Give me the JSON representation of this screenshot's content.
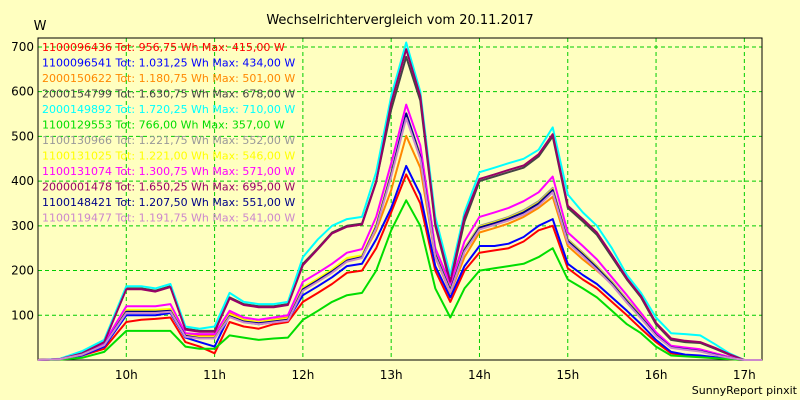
{
  "chart_data": {
    "type": "line",
    "title": "Wechselrichtervergleich vom 20.11.2017",
    "ylabel": "W",
    "xlabel": "",
    "footer": "SunnyReport pinxit",
    "xlim": [
      9.0,
      17.2
    ],
    "ylim": [
      0,
      720
    ],
    "yticks": [
      100,
      200,
      300,
      400,
      500,
      600,
      700
    ],
    "xticks": [
      10,
      11,
      12,
      13,
      14,
      15,
      16,
      17
    ],
    "xtick_labels": [
      "10h",
      "11h",
      "12h",
      "13h",
      "14h",
      "15h",
      "16h",
      "17h"
    ],
    "grid": true,
    "legend_position": "top-left",
    "x": [
      9.0,
      9.25,
      9.5,
      9.75,
      10.0,
      10.17,
      10.33,
      10.5,
      10.67,
      10.83,
      11.0,
      11.17,
      11.33,
      11.5,
      11.67,
      11.83,
      12.0,
      12.17,
      12.33,
      12.5,
      12.67,
      12.83,
      13.0,
      13.17,
      13.33,
      13.5,
      13.67,
      13.83,
      14.0,
      14.17,
      14.33,
      14.5,
      14.67,
      14.83,
      15.0,
      15.17,
      15.33,
      15.5,
      15.67,
      15.83,
      16.0,
      16.17,
      16.33,
      16.5,
      16.67,
      16.83,
      17.0,
      17.2
    ],
    "series": [
      {
        "name": "1100096436 Tot: 956,75 Wh Max: 415,00 W",
        "color": "#ff0000",
        "values": [
          0,
          2,
          10,
          25,
          85,
          90,
          92,
          95,
          40,
          30,
          15,
          85,
          75,
          70,
          80,
          85,
          130,
          150,
          170,
          195,
          200,
          250,
          330,
          415,
          350,
          200,
          130,
          200,
          240,
          245,
          250,
          265,
          290,
          300,
          205,
          180,
          160,
          130,
          100,
          70,
          40,
          15,
          10,
          8,
          5,
          2,
          0,
          0
        ]
      },
      {
        "name": "1100096541 Tot: 1.031,25 Wh Max: 434,00 W",
        "color": "#0000ff",
        "values": [
          0,
          2,
          10,
          30,
          100,
          100,
          100,
          105,
          50,
          40,
          30,
          100,
          85,
          80,
          85,
          90,
          145,
          165,
          185,
          210,
          215,
          270,
          340,
          434,
          370,
          210,
          140,
          210,
          255,
          255,
          260,
          275,
          300,
          315,
          215,
          190,
          170,
          140,
          110,
          80,
          45,
          18,
          12,
          10,
          6,
          3,
          0,
          0
        ]
      },
      {
        "name": "2000150622 Tot: 1.180,75 Wh Max: 501,00 W",
        "color": "#ff8800",
        "values": [
          0,
          2,
          15,
          35,
          110,
          110,
          110,
          110,
          60,
          55,
          55,
          105,
          90,
          85,
          90,
          95,
          160,
          180,
          200,
          225,
          230,
          290,
          380,
          501,
          430,
          230,
          150,
          230,
          285,
          295,
          305,
          320,
          340,
          365,
          255,
          225,
          200,
          170,
          130,
          95,
          55,
          28,
          25,
          20,
          12,
          5,
          0,
          0
        ]
      },
      {
        "name": "2000154799 Tot: 1.630,75 Wh Max: 678,00 W",
        "color": "#444444",
        "values": [
          0,
          2,
          15,
          40,
          160,
          160,
          155,
          165,
          70,
          65,
          65,
          140,
          125,
          120,
          120,
          125,
          215,
          250,
          285,
          300,
          305,
          400,
          560,
          678,
          580,
          300,
          170,
          310,
          400,
          410,
          420,
          430,
          455,
          500,
          340,
          310,
          280,
          230,
          180,
          140,
          80,
          45,
          40,
          38,
          25,
          12,
          0,
          0
        ]
      },
      {
        "name": "2000149892 Tot: 1.720,25 Wh Max: 710,00 W",
        "color": "#00ffff",
        "values": [
          0,
          3,
          20,
          45,
          165,
          165,
          160,
          170,
          75,
          70,
          75,
          150,
          130,
          125,
          125,
          130,
          230,
          270,
          300,
          315,
          320,
          420,
          590,
          710,
          600,
          320,
          190,
          330,
          420,
          430,
          440,
          450,
          470,
          520,
          370,
          330,
          300,
          250,
          190,
          150,
          95,
          60,
          58,
          55,
          35,
          15,
          0,
          0
        ]
      },
      {
        "name": "1100129553 Tot: 766,00 Wh Max: 357,00 W",
        "color": "#00dd00",
        "values": [
          0,
          1,
          5,
          18,
          65,
          65,
          65,
          65,
          30,
          25,
          25,
          55,
          50,
          45,
          48,
          50,
          90,
          110,
          130,
          145,
          150,
          200,
          290,
          357,
          300,
          160,
          95,
          160,
          200,
          205,
          210,
          215,
          230,
          250,
          180,
          160,
          140,
          110,
          80,
          60,
          30,
          10,
          8,
          6,
          4,
          2,
          0,
          0
        ]
      },
      {
        "name": "1100130966 Tot: 1.221,75 Wh Max: 552,00 W",
        "color": "#999999",
        "values": [
          0,
          2,
          12,
          35,
          110,
          110,
          110,
          112,
          55,
          50,
          50,
          100,
          88,
          84,
          88,
          92,
          160,
          180,
          200,
          225,
          232,
          300,
          420,
          552,
          460,
          240,
          160,
          250,
          300,
          310,
          320,
          335,
          355,
          385,
          270,
          240,
          210,
          175,
          135,
          100,
          58,
          30,
          26,
          22,
          14,
          6,
          0,
          0
        ]
      },
      {
        "name": "1100131025 Tot: 1.221,00 Wh Max: 546,00 W",
        "color": "#ffff00",
        "values": [
          0,
          2,
          12,
          35,
          112,
          112,
          112,
          114,
          56,
          51,
          51,
          102,
          89,
          85,
          89,
          93,
          162,
          182,
          202,
          228,
          234,
          302,
          418,
          546,
          458,
          238,
          158,
          248,
          298,
          308,
          318,
          332,
          352,
          382,
          268,
          238,
          208,
          173,
          133,
          98,
          57,
          29,
          25,
          21,
          13,
          6,
          0,
          0
        ]
      },
      {
        "name": "1100131074 Tot: 1.300,75 Wh Max: 571,00 W",
        "color": "#ff00ff",
        "values": [
          0,
          2,
          14,
          38,
          120,
          120,
          120,
          125,
          60,
          58,
          58,
          110,
          95,
          90,
          95,
          100,
          175,
          195,
          215,
          240,
          248,
          320,
          440,
          571,
          480,
          250,
          170,
          265,
          320,
          330,
          340,
          355,
          375,
          410,
          285,
          255,
          225,
          185,
          145,
          105,
          62,
          32,
          28,
          24,
          15,
          7,
          0,
          0
        ]
      },
      {
        "name": "2000001478 Tot: 1.650,25 Wh Max: 695,00 W",
        "color": "#990066",
        "values": [
          0,
          2,
          15,
          40,
          158,
          158,
          153,
          163,
          68,
          63,
          63,
          138,
          123,
          118,
          118,
          123,
          212,
          248,
          283,
          298,
          303,
          398,
          575,
          695,
          590,
          305,
          175,
          320,
          405,
          415,
          425,
          435,
          460,
          505,
          345,
          315,
          285,
          235,
          183,
          143,
          83,
          48,
          43,
          40,
          27,
          13,
          0,
          0
        ]
      },
      {
        "name": "1100148421 Tot: 1.207,50 Wh Max: 551,00 W",
        "color": "#000088",
        "values": [
          0,
          2,
          12,
          33,
          108,
          108,
          108,
          110,
          54,
          49,
          49,
          98,
          86,
          82,
          86,
          90,
          158,
          178,
          198,
          222,
          230,
          298,
          415,
          551,
          455,
          236,
          156,
          246,
          296,
          306,
          316,
          330,
          350,
          380,
          266,
          236,
          206,
          171,
          131,
          96,
          56,
          28,
          24,
          20,
          12,
          5,
          0,
          0
        ]
      },
      {
        "name": "1100119477 Tot: 1.191,75 Wh Max: 541,00 W",
        "color": "#cc88cc",
        "values": [
          0,
          2,
          12,
          33,
          105,
          105,
          105,
          108,
          52,
          48,
          48,
          96,
          84,
          80,
          84,
          88,
          155,
          175,
          195,
          220,
          228,
          295,
          410,
          541,
          450,
          232,
          152,
          242,
          292,
          302,
          312,
          325,
          345,
          375,
          262,
          232,
          202,
          168,
          128,
          93,
          54,
          27,
          23,
          19,
          11,
          5,
          0,
          0
        ]
      }
    ]
  }
}
